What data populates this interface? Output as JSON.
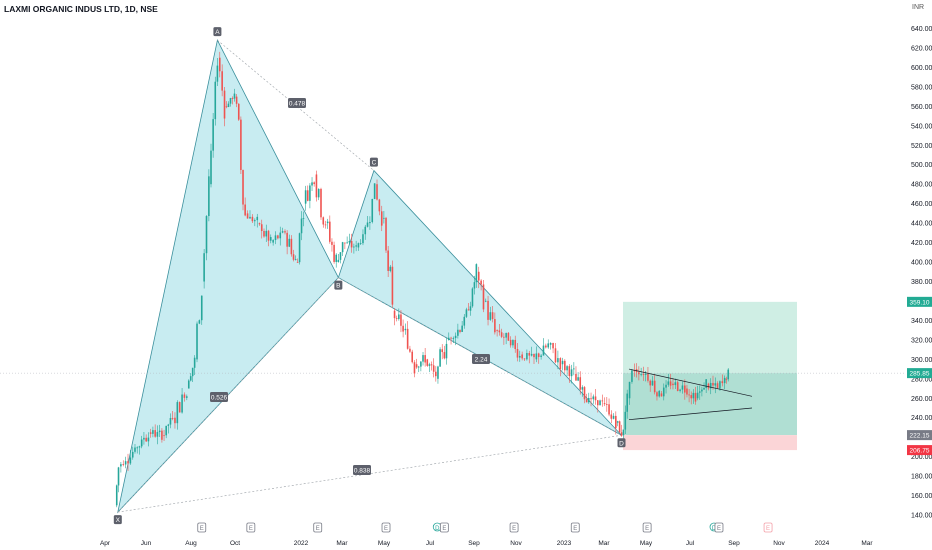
{
  "header": {
    "title": "LAXMI ORGANIC INDUS LTD, 1D, NSE",
    "currency": "INR"
  },
  "chart_data": {
    "type": "candlestick",
    "symbol": "LAXMI ORGANIC INDUS LTD",
    "interval": "1D",
    "exchange": "NSE",
    "ylim": [
      130,
      650
    ],
    "y_ticks": [
      140,
      160,
      180,
      200,
      220,
      240,
      260,
      280,
      300,
      320,
      340,
      360,
      380,
      400,
      420,
      440,
      460,
      480,
      500,
      520,
      540,
      560,
      580,
      600,
      620,
      640
    ],
    "x_labels": [
      "Apr",
      "Jun",
      "Aug",
      "Oct",
      "2022",
      "Mar",
      "May",
      "Jul",
      "Sep",
      "Nov",
      "2023",
      "Mar",
      "May",
      "Jul",
      "Sep",
      "Nov",
      "2024",
      "Mar"
    ],
    "last_price": "285.85",
    "trade_levels": {
      "target": "359.10",
      "entry": "222.15",
      "stop": "206.75"
    },
    "harmonic_points": [
      {
        "label": "X",
        "date": "2021-04-19",
        "price": 143
      },
      {
        "label": "A",
        "date": "2021-09-06",
        "price": 628
      },
      {
        "label": "B",
        "date": "2022-02-23",
        "price": 384
      },
      {
        "label": "C",
        "date": "2022-04-14",
        "price": 494
      },
      {
        "label": "D",
        "date": "2023-03-28",
        "price": 222
      }
    ],
    "ratios": [
      "0.478",
      "0.526",
      "2.24",
      "0.838"
    ],
    "price_path": [
      [
        "2021-04-15",
        150
      ],
      [
        "2021-04-20",
        190
      ],
      [
        "2021-05-10",
        205
      ],
      [
        "2021-06-01",
        225
      ],
      [
        "2021-06-20",
        222
      ],
      [
        "2021-07-05",
        240
      ],
      [
        "2021-07-25",
        270
      ],
      [
        "2021-08-05",
        300
      ],
      [
        "2021-08-15",
        380
      ],
      [
        "2021-08-25",
        480
      ],
      [
        "2021-09-06",
        610
      ],
      [
        "2021-09-16",
        560
      ],
      [
        "2021-09-30",
        570
      ],
      [
        "2021-10-15",
        450
      ],
      [
        "2021-11-01",
        440
      ],
      [
        "2021-11-20",
        420
      ],
      [
        "2021-12-10",
        430
      ],
      [
        "2021-12-25",
        400
      ],
      [
        "2022-01-05",
        460
      ],
      [
        "2022-01-20",
        490
      ],
      [
        "2022-02-05",
        440
      ],
      [
        "2022-02-20",
        400
      ],
      [
        "2022-03-01",
        420
      ],
      [
        "2022-03-20",
        415
      ],
      [
        "2022-04-05",
        440
      ],
      [
        "2022-04-15",
        480
      ],
      [
        "2022-04-25",
        445
      ],
      [
        "2022-05-10",
        350
      ],
      [
        "2022-05-25",
        330
      ],
      [
        "2022-06-10",
        295
      ],
      [
        "2022-06-25",
        300
      ],
      [
        "2022-07-10",
        280
      ],
      [
        "2022-07-25",
        320
      ],
      [
        "2022-08-10",
        330
      ],
      [
        "2022-08-25",
        350
      ],
      [
        "2022-09-05",
        390
      ],
      [
        "2022-09-15",
        360
      ],
      [
        "2022-10-01",
        330
      ],
      [
        "2022-10-20",
        320
      ],
      [
        "2022-11-05",
        305
      ],
      [
        "2022-11-25",
        300
      ],
      [
        "2022-12-15",
        315
      ],
      [
        "2023-01-01",
        295
      ],
      [
        "2023-01-20",
        285
      ],
      [
        "2023-02-10",
        260
      ],
      [
        "2023-03-01",
        255
      ],
      [
        "2023-03-20",
        235
      ],
      [
        "2023-03-28",
        222
      ],
      [
        "2023-04-05",
        260
      ],
      [
        "2023-04-15",
        290
      ],
      [
        "2023-05-01",
        285
      ],
      [
        "2023-05-20",
        265
      ],
      [
        "2023-06-05",
        275
      ],
      [
        "2023-06-25",
        270
      ],
      [
        "2023-07-10",
        260
      ],
      [
        "2023-07-25",
        275
      ],
      [
        "2023-08-10",
        270
      ],
      [
        "2023-08-20",
        280
      ],
      [
        "2023-08-25",
        285.85
      ]
    ],
    "event_markers": [
      {
        "date": "2021-08-15",
        "label": "E"
      },
      {
        "date": "2021-10-23",
        "label": "E"
      },
      {
        "date": "2022-01-25",
        "label": "E"
      },
      {
        "date": "2022-05-01",
        "label": "E"
      },
      {
        "date": "2022-07-12",
        "label": "D"
      },
      {
        "date": "2022-07-22",
        "label": "E"
      },
      {
        "date": "2022-10-28",
        "label": "E"
      },
      {
        "date": "2023-01-22",
        "label": "E"
      },
      {
        "date": "2023-05-03",
        "label": "E"
      },
      {
        "date": "2023-08-05",
        "label": "D"
      },
      {
        "date": "2023-08-12",
        "label": "E"
      },
      {
        "date": "2023-10-20",
        "label": "E"
      }
    ]
  },
  "colors": {
    "up": "#26a69a",
    "down": "#ef5350",
    "pattern_fill": "#b6e6ec",
    "pattern_line": "#3a8f9c",
    "target_zone": "#cfeee4",
    "target_dark": "#8fd1c0",
    "stop_zone": "#fbd5d7",
    "target_tag": "#22ab94",
    "stop_tag": "#f23645",
    "entry_tag": "#787b86"
  }
}
